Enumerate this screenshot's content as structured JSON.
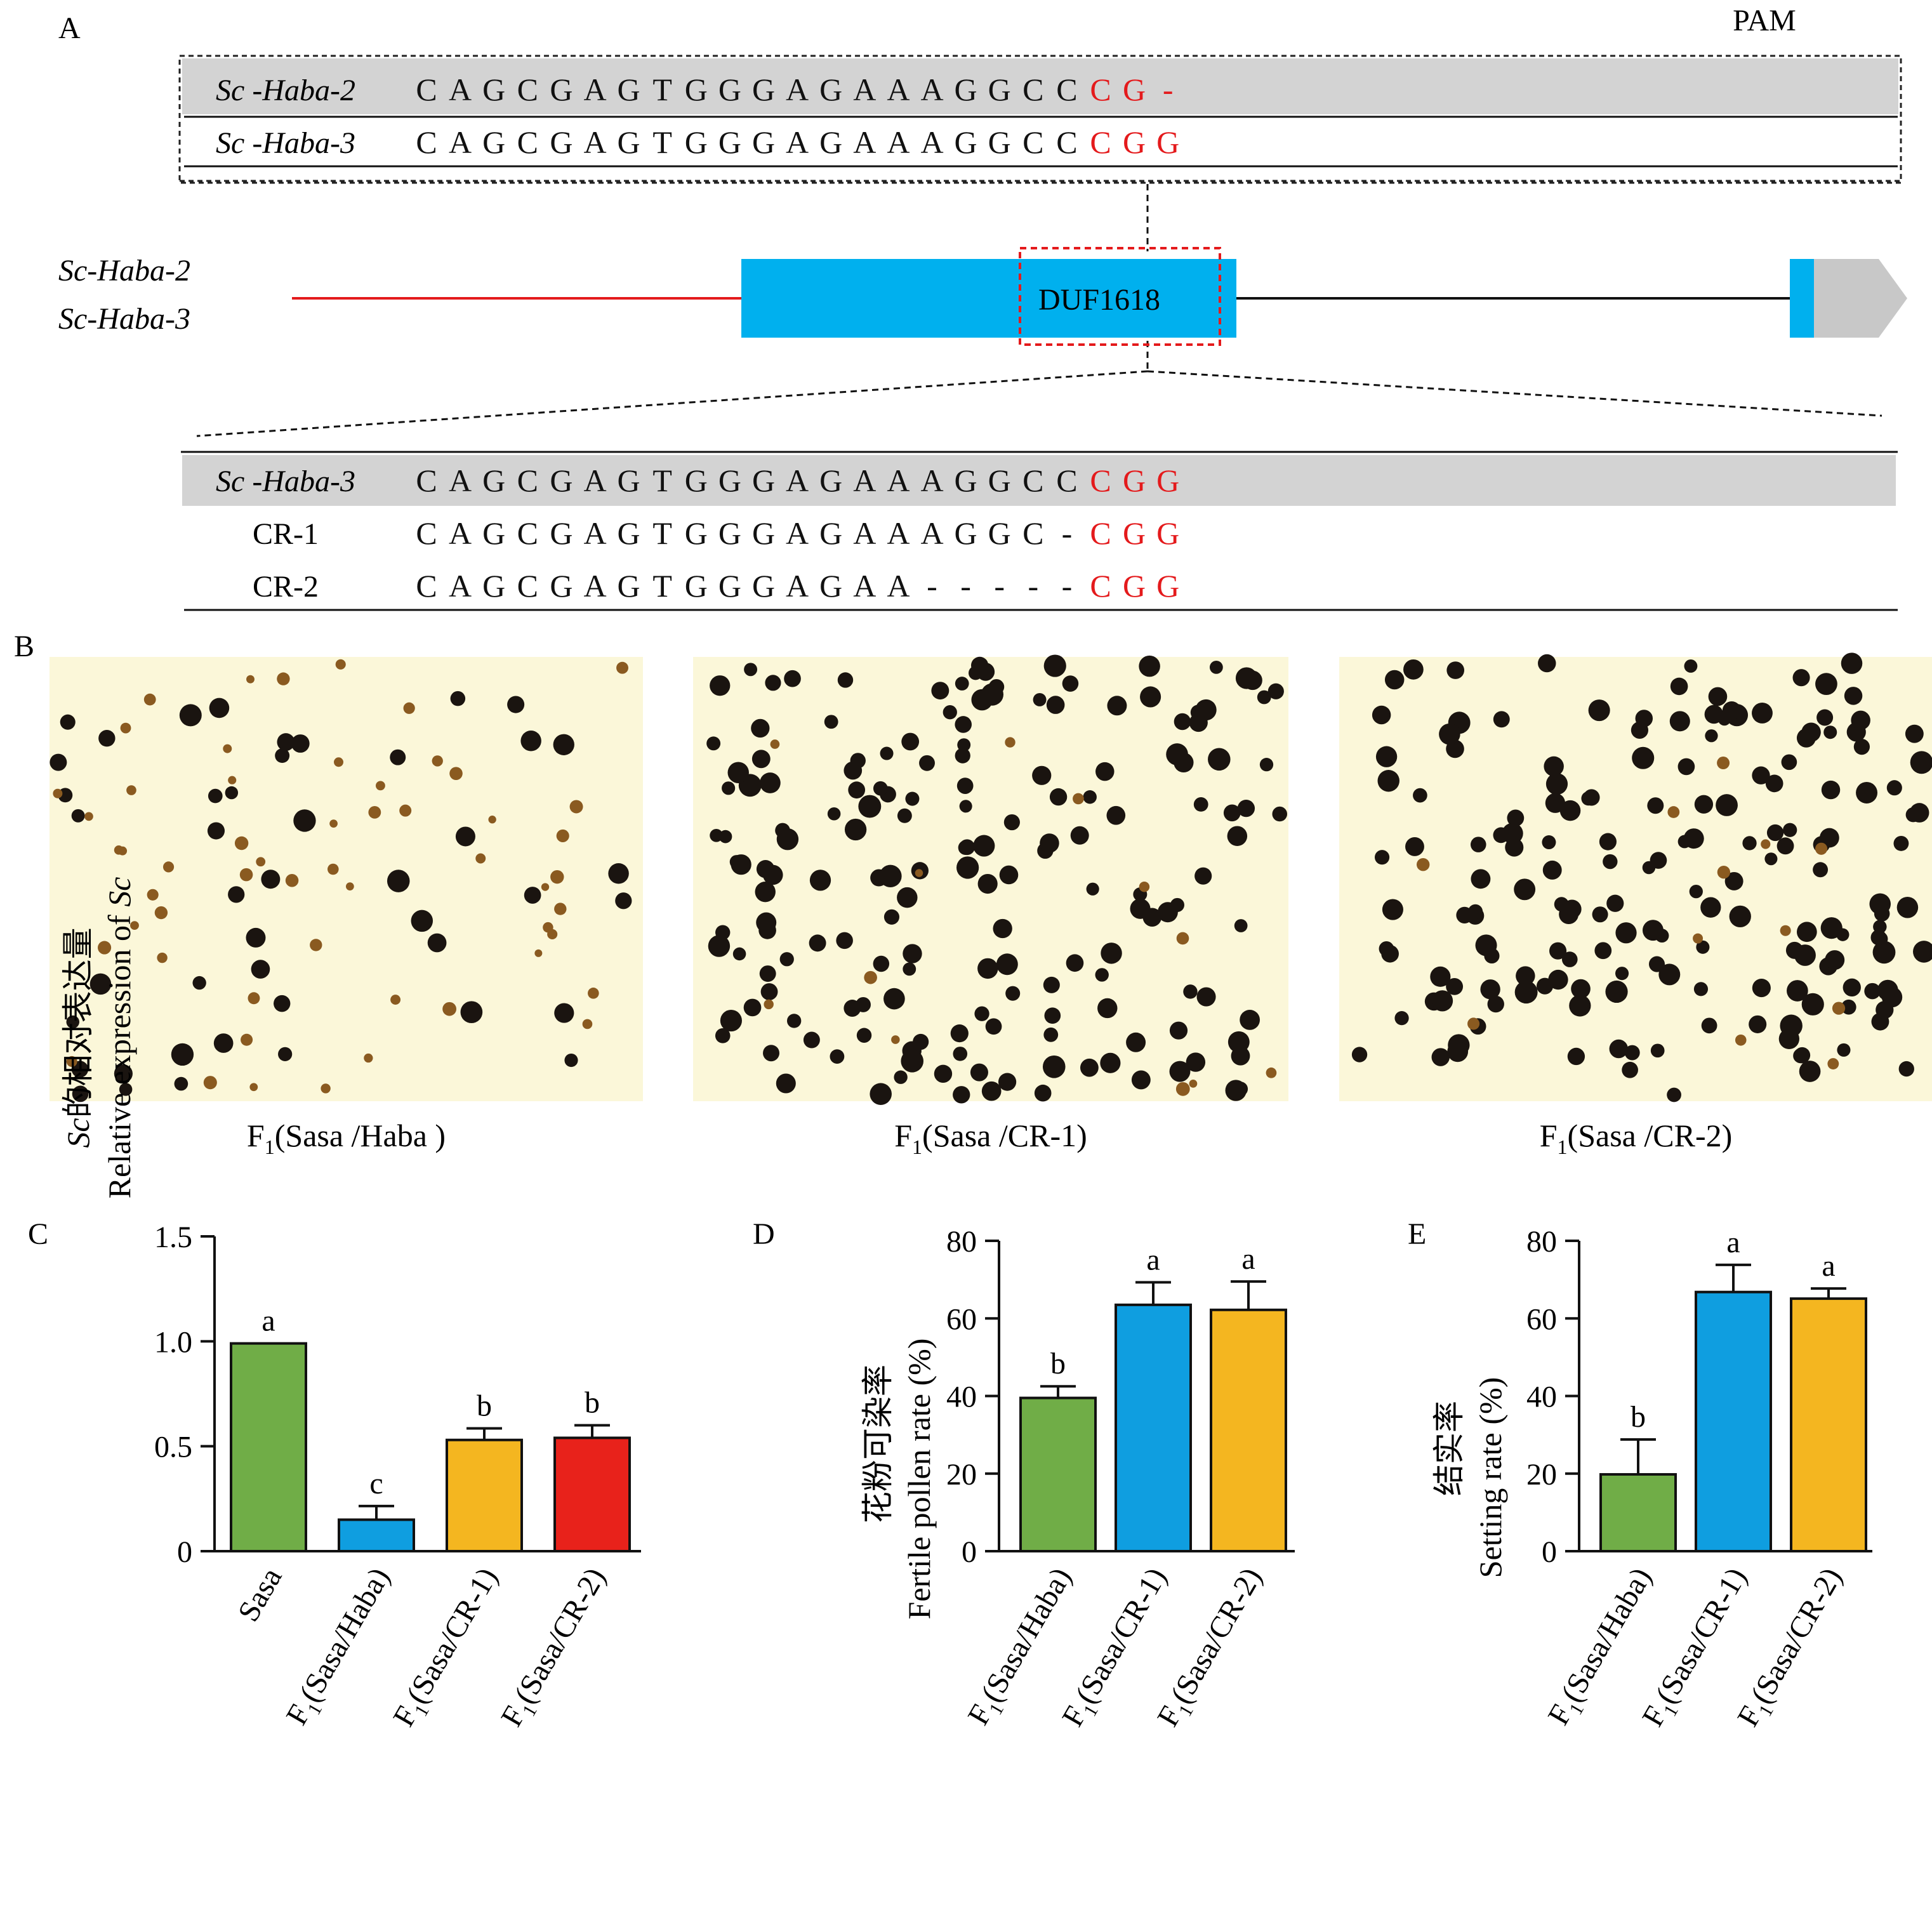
{
  "panels": {
    "A": "A",
    "B": "B",
    "C": "C",
    "D": "D",
    "E": "E"
  },
  "panel_a": {
    "pam_label": "PAM",
    "ref_rows": [
      {
        "name_pre": "Sc",
        "name_gene": "Haba",
        "name_suf": "-2",
        "seq": [
          "C",
          "A",
          "G",
          "C",
          "G",
          "A",
          "G",
          "T",
          "G",
          "G",
          "G",
          "A",
          "G",
          "A",
          "A",
          "A",
          "G",
          "G",
          "C",
          "C",
          "C",
          "G",
          "-"
        ]
      },
      {
        "name_pre": "Sc",
        "name_gene": "Haba",
        "name_suf": "-3",
        "seq": [
          "C",
          "A",
          "G",
          "C",
          "G",
          "A",
          "G",
          "T",
          "G",
          "G",
          "G",
          "A",
          "G",
          "A",
          "A",
          "A",
          "G",
          "G",
          "C",
          "C",
          "C",
          "G",
          "G"
        ]
      }
    ],
    "gene_labels": [
      "Sc-Haba-2",
      "Sc-Haba-3"
    ],
    "domain_label": "DUF1618",
    "cr_rows": [
      {
        "name_pre": "Sc",
        "name_gene": "Haba",
        "name_suf": "-3",
        "italic": true,
        "seq": [
          "C",
          "A",
          "G",
          "C",
          "G",
          "A",
          "G",
          "T",
          "G",
          "G",
          "G",
          "A",
          "G",
          "A",
          "A",
          "A",
          "G",
          "G",
          "C",
          "C",
          "C",
          "G",
          "G"
        ]
      },
      {
        "name": "CR-1",
        "italic": false,
        "seq": [
          "C",
          "A",
          "G",
          "C",
          "G",
          "A",
          "G",
          "T",
          "G",
          "G",
          "G",
          "A",
          "G",
          "A",
          "A",
          "A",
          "G",
          "G",
          "C",
          "-",
          "C",
          "G",
          "G"
        ]
      },
      {
        "name": "CR-2",
        "italic": false,
        "seq": [
          "C",
          "A",
          "G",
          "C",
          "G",
          "A",
          "G",
          "T",
          "G",
          "G",
          "G",
          "A",
          "G",
          "A",
          "A",
          "-",
          "-",
          "-",
          "-",
          "-",
          "C",
          "G",
          "G"
        ]
      }
    ],
    "pam_color": "#e41a1c",
    "domain_color": "#00b0ee",
    "utr_color": "#c8c8c8",
    "promoter_color": "#e41a1c"
  },
  "panel_b": {
    "captions": [
      {
        "main": "F",
        "sub": "1",
        "rest": "(Sasa  /Haba )"
      },
      {
        "main": "F",
        "sub": "1",
        "rest": "(Sasa  /CR-1)"
      },
      {
        "main": "F",
        "sub": "1",
        "rest": "(Sasa  /CR-2)"
      }
    ],
    "background_color": "#fbf7d9",
    "fertile_color": "#1a1410",
    "sterile_color": "#8a5a20"
  },
  "chart_data": [
    {
      "type": "bar",
      "panel": "C",
      "ylabel_1_pre": "Sc",
      "ylabel_1_post": "的相对表达量",
      "ylabel_2_pre": "Relative expression of ",
      "ylabel_2_italic": "Sc",
      "ylim": [
        0,
        1.5
      ],
      "yticks": [
        "0",
        "0.5",
        "1.0",
        "1.5"
      ],
      "ytick_values": [
        0,
        0.5,
        1.0,
        1.5
      ],
      "categories": [
        {
          "main": "Sasa",
          "sub": "",
          "rest": ""
        },
        {
          "main": "F",
          "sub": "1",
          "rest": "(Sasa/Haba)"
        },
        {
          "main": "F",
          "sub": "1",
          "rest": "(Sasa/CR-1)"
        },
        {
          "main": "F",
          "sub": "1",
          "rest": "(Sasa/CR-2)"
        }
      ],
      "values": [
        0.99,
        0.15,
        0.53,
        0.54
      ],
      "errors": [
        0.0,
        0.065,
        0.055,
        0.06
      ],
      "letters": [
        "a",
        "c",
        "b",
        "b"
      ],
      "colors": [
        "#70ad47",
        "#0f9ee0",
        "#f4b620",
        "#e8221b"
      ]
    },
    {
      "type": "bar",
      "panel": "D",
      "ylabel_1": "花粉可染率",
      "ylabel_2": "Fertile pollen rate (%)",
      "ylim": [
        0,
        80
      ],
      "yticks": [
        "0",
        "20",
        "40",
        "60",
        "80"
      ],
      "ytick_values": [
        0,
        20,
        40,
        60,
        80
      ],
      "categories": [
        {
          "main": "F",
          "sub": "1",
          "rest": "(Sasa/Haba)"
        },
        {
          "main": "F",
          "sub": "1",
          "rest": "(Sasa/CR-1)"
        },
        {
          "main": "F",
          "sub": "1",
          "rest": "(Sasa/CR-2)"
        }
      ],
      "values": [
        39.5,
        63.5,
        62.2
      ],
      "errors": [
        3.0,
        5.8,
        7.3
      ],
      "letters": [
        "b",
        "a",
        "a"
      ],
      "colors": [
        "#70ad47",
        "#0f9ee0",
        "#f4b620"
      ]
    },
    {
      "type": "bar",
      "panel": "E",
      "ylabel_1": "结实率",
      "ylabel_2": "Setting rate (%)",
      "ylim": [
        0,
        80
      ],
      "yticks": [
        "0",
        "20",
        "40",
        "60",
        "80"
      ],
      "ytick_values": [
        0,
        20,
        40,
        60,
        80
      ],
      "categories": [
        {
          "main": "F",
          "sub": "1",
          "rest": "(Sasa/Haba)"
        },
        {
          "main": "F",
          "sub": "1",
          "rest": "(Sasa/CR-1)"
        },
        {
          "main": "F",
          "sub": "1",
          "rest": "(Sasa/CR-2)"
        }
      ],
      "values": [
        19.8,
        66.8,
        65.1
      ],
      "errors": [
        9.0,
        7.0,
        2.6
      ],
      "letters": [
        "b",
        "a",
        "a"
      ],
      "colors": [
        "#70ad47",
        "#0f9ee0",
        "#f4b620"
      ]
    }
  ]
}
